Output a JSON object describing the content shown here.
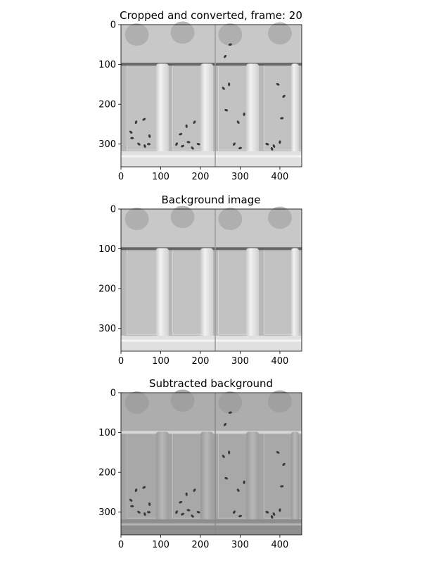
{
  "figure": {
    "panels": [
      {
        "id": "frame",
        "title": "Cropped and converted, frame: 20",
        "tone": "raw",
        "x_ticks": [
          "0",
          "100",
          "200",
          "300",
          "400"
        ],
        "y_ticks": [
          "0",
          "100",
          "200",
          "300"
        ],
        "x_tick_values": [
          0,
          100,
          200,
          300,
          400
        ],
        "y_tick_values": [
          0,
          100,
          200,
          300
        ],
        "x_range": [
          0,
          455
        ],
        "y_range": [
          0,
          357
        ]
      },
      {
        "id": "background",
        "title": "Background image",
        "tone": "raw",
        "x_ticks": [
          "0",
          "100",
          "200",
          "300",
          "400"
        ],
        "y_ticks": [
          "0",
          "100",
          "200",
          "300"
        ],
        "x_tick_values": [
          0,
          100,
          200,
          300,
          400
        ],
        "y_tick_values": [
          0,
          100,
          200,
          300
        ],
        "x_range": [
          0,
          455
        ],
        "y_range": [
          0,
          357
        ]
      },
      {
        "id": "subtracted",
        "title": "Subtracted background",
        "tone": "diff",
        "x_ticks": [
          "0",
          "100",
          "200",
          "300",
          "400"
        ],
        "y_ticks": [
          "0",
          "100",
          "200",
          "300"
        ],
        "x_tick_values": [
          0,
          100,
          200,
          300,
          400
        ],
        "y_tick_values": [
          0,
          100,
          200,
          300
        ],
        "x_range": [
          0,
          455
        ],
        "y_range": [
          0,
          357
        ]
      }
    ],
    "colors": {
      "raw_bg": "#b8b8b8",
      "diff_bg": "#a3a3a3",
      "tube": "#e4e4e4",
      "fly": "#3a3a3a",
      "axis": "#000000"
    },
    "icons": [
      "fly-mark"
    ]
  }
}
